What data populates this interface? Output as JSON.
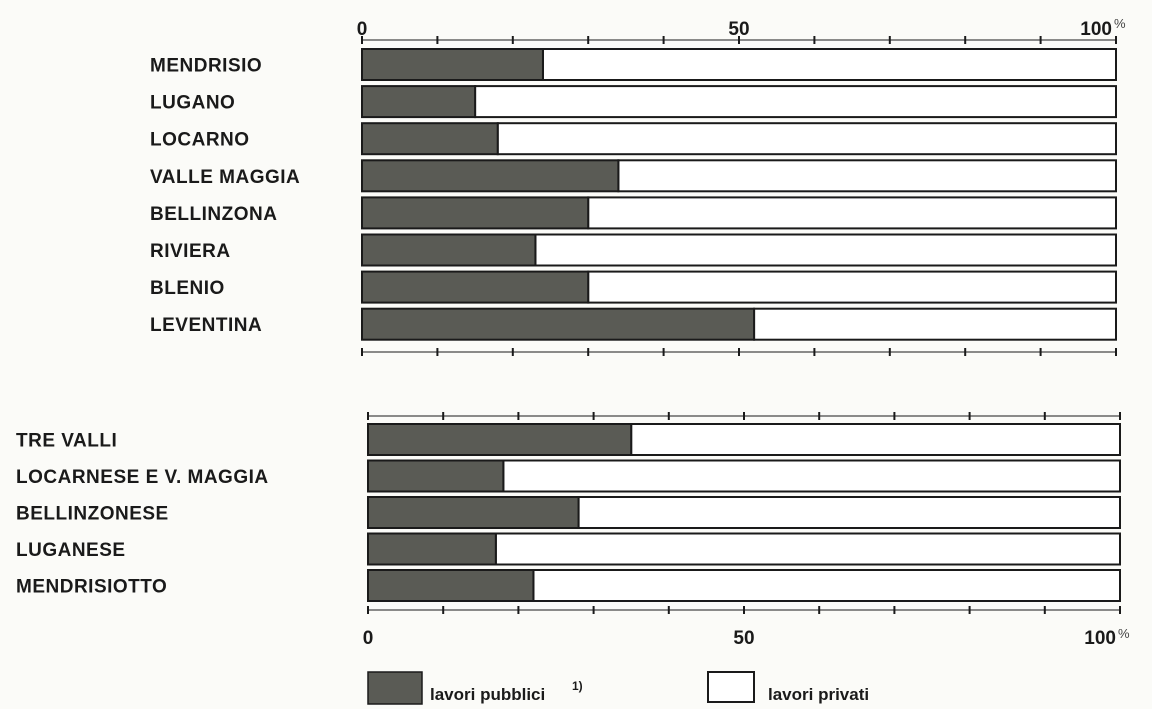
{
  "chart_data": [
    {
      "type": "bar",
      "stacked": true,
      "orientation": "horizontal",
      "categories": [
        "MENDRISIO",
        "LUGANO",
        "LOCARNO",
        "VALLE MAGGIA",
        "BELLINZONA",
        "RIVIERA",
        "BLENIO",
        "LEVENTINA"
      ],
      "series": [
        {
          "name": "lavori pubblici",
          "values": [
            24,
            15,
            18,
            34,
            30,
            23,
            30,
            52
          ]
        },
        {
          "name": "lavori privati",
          "values": [
            76,
            85,
            82,
            66,
            70,
            77,
            70,
            48
          ]
        }
      ],
      "xlim": [
        0,
        100
      ],
      "x_tick_labels": [
        "0",
        "50",
        "100"
      ],
      "x_unit": "%",
      "axis_position": "top"
    },
    {
      "type": "bar",
      "stacked": true,
      "orientation": "horizontal",
      "categories": [
        "TRE  VALLI",
        "LOCARNESE E V. MAGGIA",
        "BELLINZONESE",
        "LUGANESE",
        "MENDRISIOTTO"
      ],
      "series": [
        {
          "name": "lavori pubblici",
          "values": [
            35,
            18,
            28,
            17,
            22
          ]
        },
        {
          "name": "lavori privati",
          "values": [
            65,
            82,
            72,
            83,
            78
          ]
        }
      ],
      "xlim": [
        0,
        100
      ],
      "x_tick_labels": [
        "0",
        "50",
        "100"
      ],
      "x_unit": "%",
      "axis_position": "bottom"
    }
  ],
  "legend": {
    "items": [
      {
        "label": "lavori pubblici",
        "superscript": "1)",
        "color": "#5a5b55"
      },
      {
        "label": "lavori privati",
        "color": "#ffffff"
      }
    ]
  },
  "colors": {
    "public": "#5a5b55",
    "private": "#ffffff",
    "ink": "#1a1a1a"
  }
}
